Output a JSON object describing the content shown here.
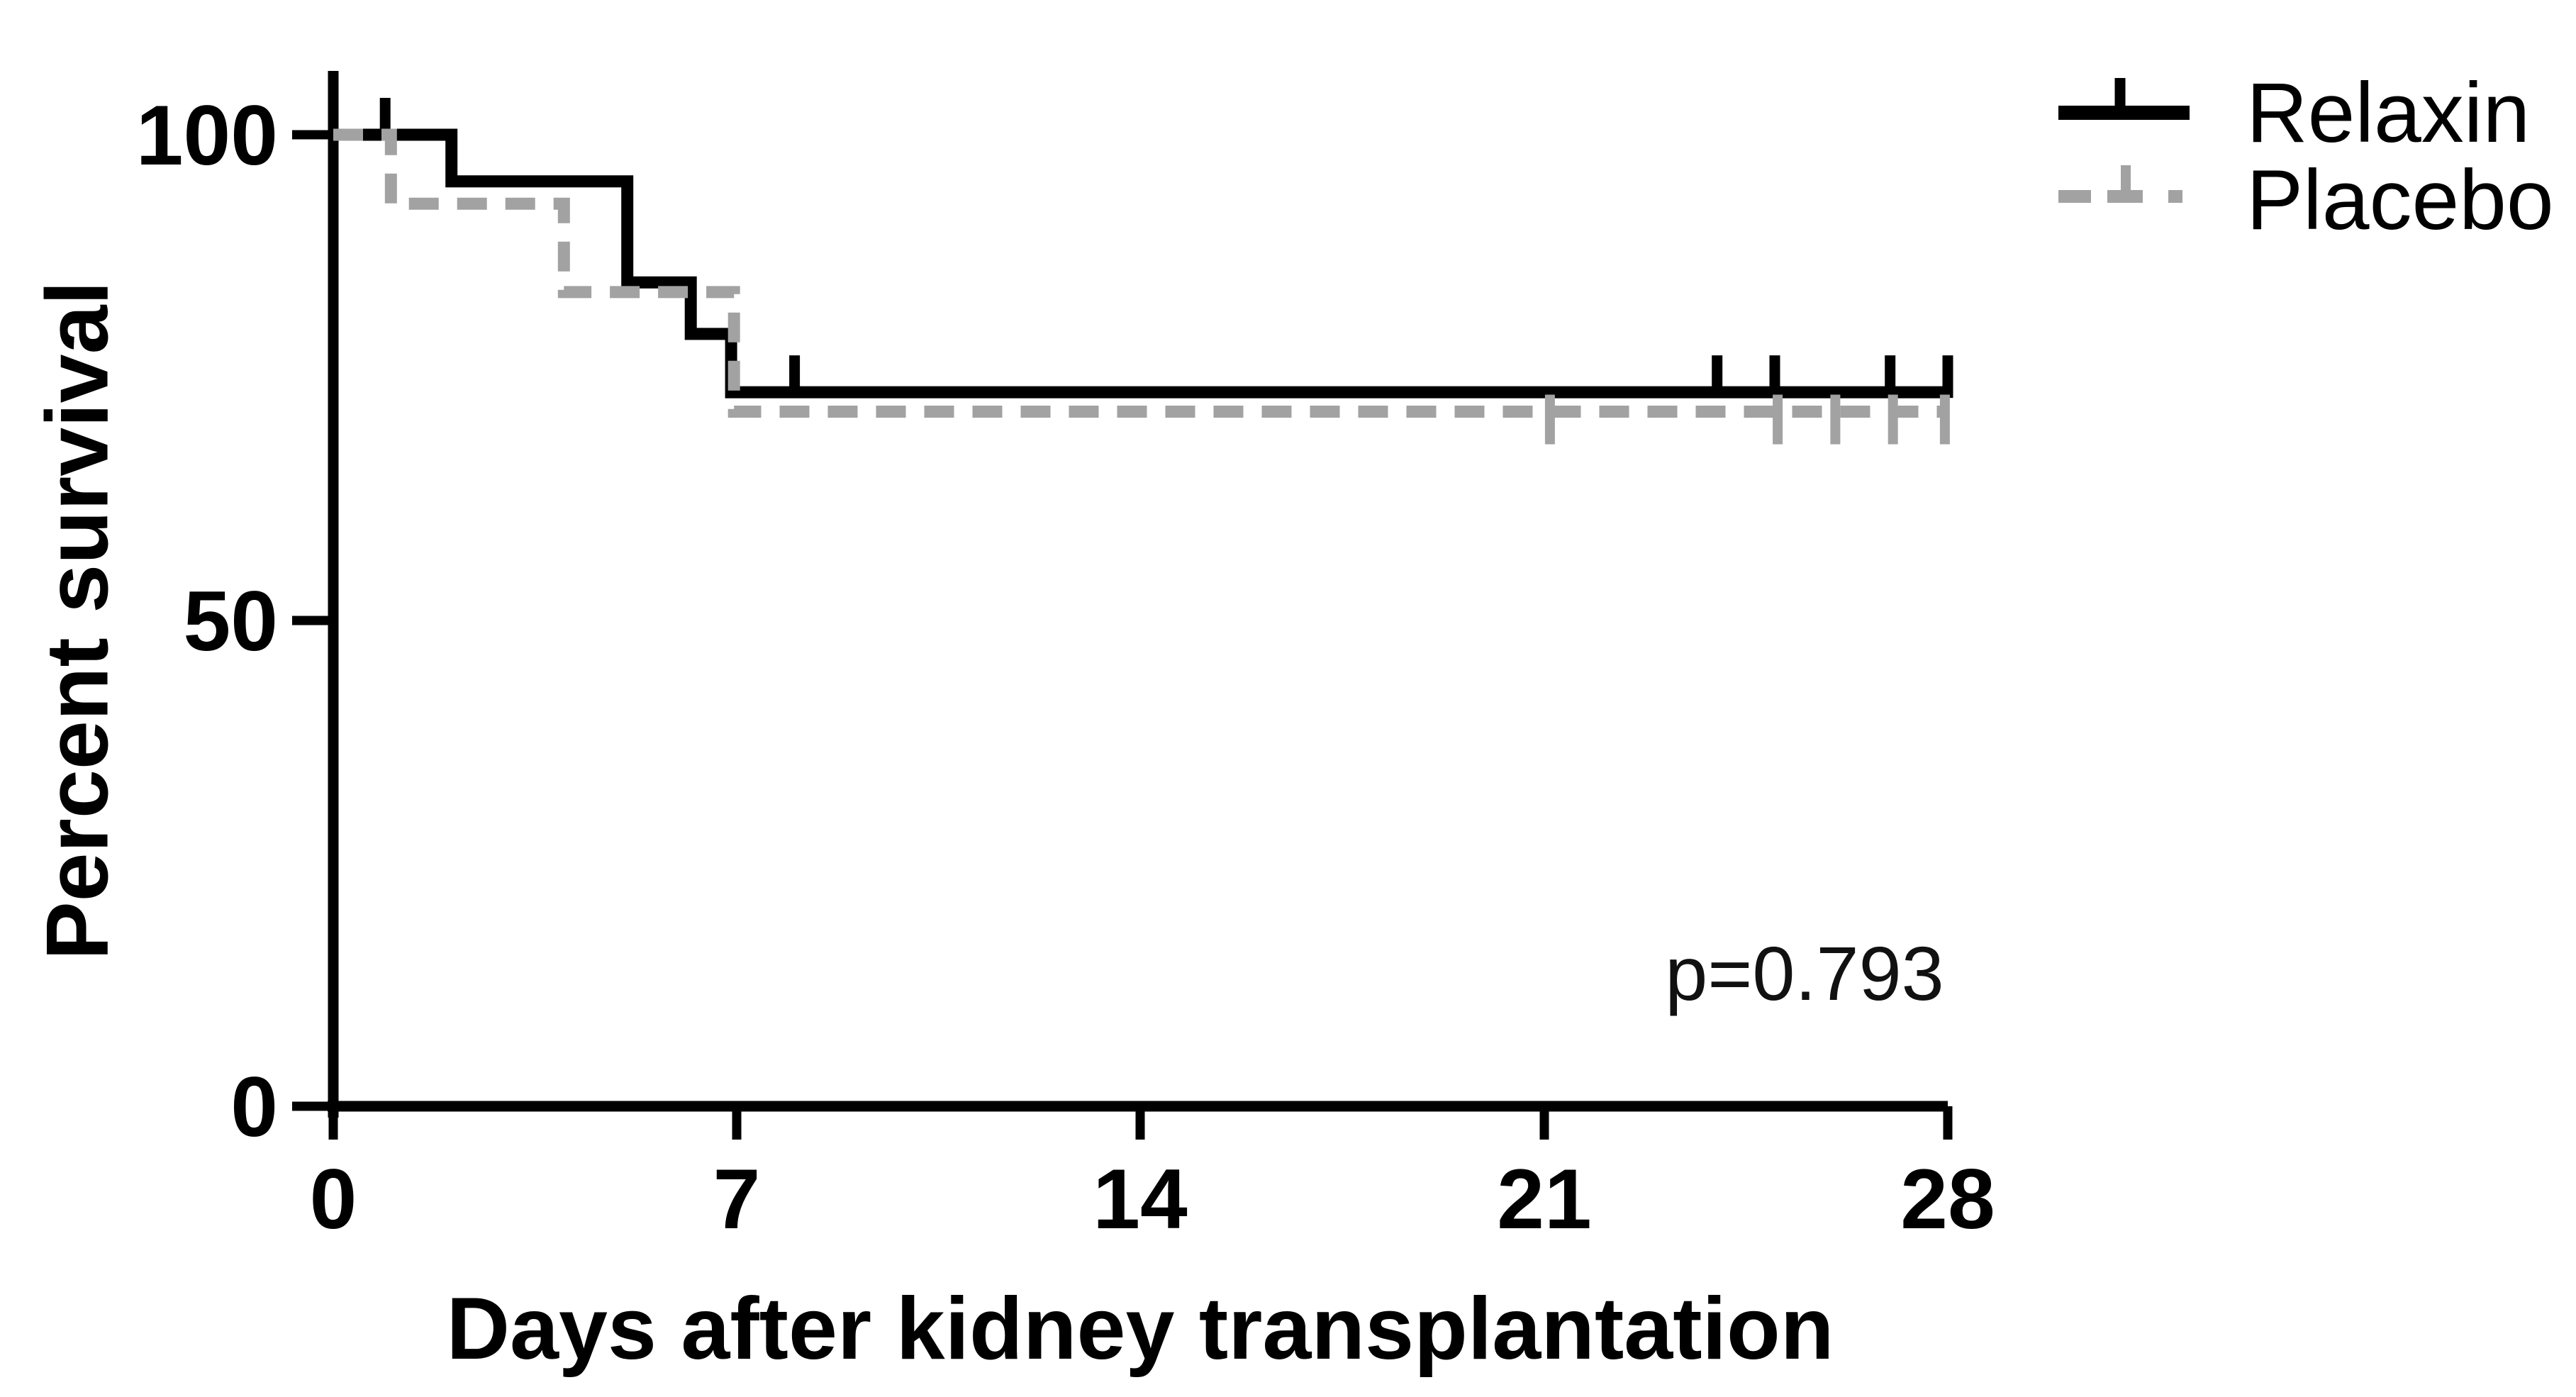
{
  "figure": {
    "background": "#ffffff",
    "p_value_annotation": "p=0.793"
  },
  "chart_data": {
    "type": "line",
    "subtype": "kaplan-meier-step",
    "title": "",
    "xlabel": "Days after kidney transplantation",
    "ylabel": "Percent survival",
    "xlim": [
      0,
      28
    ],
    "ylim": [
      0,
      100
    ],
    "xticks": [
      0,
      7,
      14,
      21,
      28
    ],
    "yticks": [
      100,
      50,
      0
    ],
    "xtick_labels": [
      "0",
      "7",
      "14",
      "21",
      "28"
    ],
    "ytick_labels": [
      "100",
      "50",
      "0"
    ],
    "grid": false,
    "legend_position": "top-right",
    "annotation": "p=0.793",
    "series": [
      {
        "name": "Relaxin",
        "color": "#000000",
        "style": "solid",
        "steps": [
          [
            0,
            100
          ],
          [
            2.05,
            100
          ],
          [
            2.05,
            95.2
          ],
          [
            5.1,
            95.2
          ],
          [
            5.1,
            84.8
          ],
          [
            6.2,
            84.8
          ],
          [
            6.2,
            79.5
          ],
          [
            6.9,
            79.5
          ],
          [
            6.9,
            73.5
          ],
          [
            28,
            73.5
          ]
        ],
        "censor_marks": [
          [
            0.9,
            100
          ],
          [
            8.0,
            73.5
          ],
          [
            24.0,
            73.5
          ],
          [
            25.0,
            73.5
          ],
          [
            27.0,
            73.5
          ],
          [
            28.0,
            73.5
          ]
        ]
      },
      {
        "name": "Placebo",
        "color": "#a2a2a2",
        "style": "dashed",
        "steps": [
          [
            0,
            100
          ],
          [
            1.0,
            100
          ],
          [
            1.0,
            92.9
          ],
          [
            4.0,
            92.9
          ],
          [
            4.0,
            83.8
          ],
          [
            6.95,
            83.8
          ],
          [
            6.95,
            71.5
          ],
          [
            28,
            71.5
          ]
        ],
        "censor_marks": [
          [
            21.1,
            71.5
          ],
          [
            25.05,
            71.5
          ],
          [
            26.05,
            71.5
          ],
          [
            27.05,
            71.5
          ],
          [
            27.95,
            71.5
          ]
        ]
      }
    ]
  }
}
